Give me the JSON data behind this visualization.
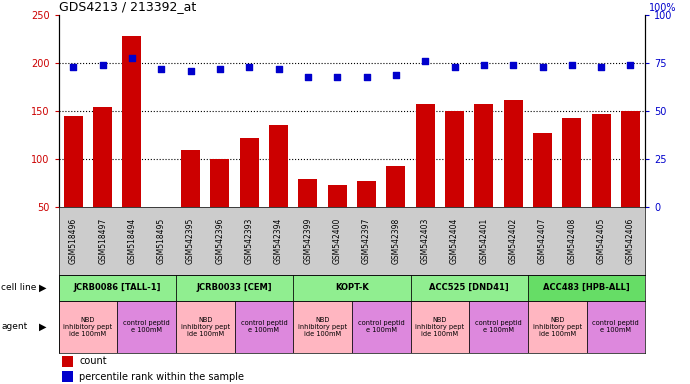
{
  "title": "GDS4213 / 213392_at",
  "gsm_labels": [
    "GSM518496",
    "GSM518497",
    "GSM518494",
    "GSM518495",
    "GSM542395",
    "GSM542396",
    "GSM542393",
    "GSM542394",
    "GSM542399",
    "GSM542400",
    "GSM542397",
    "GSM542398",
    "GSM542403",
    "GSM542404",
    "GSM542401",
    "GSM542402",
    "GSM542407",
    "GSM542408",
    "GSM542405",
    "GSM542406"
  ],
  "counts": [
    145,
    155,
    228,
    50,
    110,
    100,
    122,
    136,
    80,
    73,
    77,
    93,
    158,
    150,
    158,
    162,
    127,
    143,
    147,
    150
  ],
  "percentile_ranks": [
    73,
    74,
    78,
    72,
    71,
    72,
    73,
    72,
    68,
    68,
    68,
    69,
    76,
    73,
    74,
    74,
    73,
    74,
    73,
    74
  ],
  "cell_lines": [
    {
      "label": "JCRB0086 [TALL-1]",
      "start": 0,
      "end": 4,
      "color": "#90EE90"
    },
    {
      "label": "JCRB0033 [CEM]",
      "start": 4,
      "end": 8,
      "color": "#90EE90"
    },
    {
      "label": "KOPT-K",
      "start": 8,
      "end": 12,
      "color": "#90EE90"
    },
    {
      "label": "ACC525 [DND41]",
      "start": 12,
      "end": 16,
      "color": "#90EE90"
    },
    {
      "label": "ACC483 [HPB-ALL]",
      "start": 16,
      "end": 20,
      "color": "#66DD66"
    }
  ],
  "agents": [
    {
      "label": "NBD\ninhibitory pept\nide 100mM",
      "start": 0,
      "end": 2,
      "color": "#FFB6C1"
    },
    {
      "label": "control peptid\ne 100mM",
      "start": 2,
      "end": 4,
      "color": "#DD88DD"
    },
    {
      "label": "NBD\ninhibitory pept\nide 100mM",
      "start": 4,
      "end": 6,
      "color": "#FFB6C1"
    },
    {
      "label": "control peptid\ne 100mM",
      "start": 6,
      "end": 8,
      "color": "#DD88DD"
    },
    {
      "label": "NBD\ninhibitory pept\nide 100mM",
      "start": 8,
      "end": 10,
      "color": "#FFB6C1"
    },
    {
      "label": "control peptid\ne 100mM",
      "start": 10,
      "end": 12,
      "color": "#DD88DD"
    },
    {
      "label": "NBD\ninhibitory pept\nide 100mM",
      "start": 12,
      "end": 14,
      "color": "#FFB6C1"
    },
    {
      "label": "control peptid\ne 100mM",
      "start": 14,
      "end": 16,
      "color": "#DD88DD"
    },
    {
      "label": "NBD\ninhibitory pept\nide 100mM",
      "start": 16,
      "end": 18,
      "color": "#FFB6C1"
    },
    {
      "label": "control peptid\ne 100mM",
      "start": 18,
      "end": 20,
      "color": "#DD88DD"
    }
  ],
  "ylim_left": [
    50,
    250
  ],
  "ylim_right": [
    0,
    100
  ],
  "yticks_left": [
    50,
    100,
    150,
    200,
    250
  ],
  "yticks_right": [
    0,
    25,
    50,
    75,
    100
  ],
  "bar_color": "#CC0000",
  "dot_color": "#0000CC",
  "bg_color": "#FFFFFF",
  "legend_count_color": "#CC0000",
  "legend_dot_color": "#0000CC",
  "left_label_color": "#CC0000",
  "right_label_color": "#0000CC"
}
